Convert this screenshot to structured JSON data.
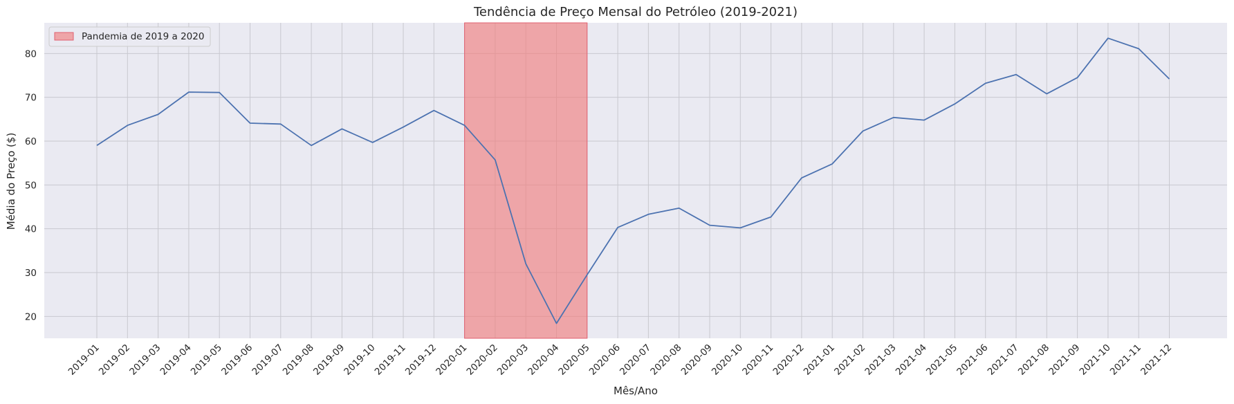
{
  "chart_data": {
    "type": "line",
    "title": "Tendência de Preço Mensal do Petróleo (2019-2021)",
    "xlabel": "Mês/Ano",
    "ylabel": "Média do Preço ($)",
    "ylim": [
      15,
      87
    ],
    "yticks": [
      20,
      30,
      40,
      50,
      60,
      70,
      80
    ],
    "grid": true,
    "legend_position": "top-left",
    "categories": [
      "2019-01",
      "2019-02",
      "2019-03",
      "2019-04",
      "2019-05",
      "2019-06",
      "2019-07",
      "2019-08",
      "2019-09",
      "2019-10",
      "2019-11",
      "2019-12",
      "2020-01",
      "2020-02",
      "2020-03",
      "2020-04",
      "2020-05",
      "2020-06",
      "2020-07",
      "2020-08",
      "2020-09",
      "2020-10",
      "2020-11",
      "2020-12",
      "2021-01",
      "2021-02",
      "2021-03",
      "2021-04",
      "2021-05",
      "2021-06",
      "2021-07",
      "2021-08",
      "2021-09",
      "2021-10",
      "2021-11",
      "2021-12"
    ],
    "series": [
      {
        "values": [
          59.0,
          63.6,
          66.1,
          71.2,
          71.1,
          64.1,
          63.9,
          59.0,
          62.8,
          59.7,
          63.2,
          67.0,
          63.6,
          55.7,
          32.0,
          18.4,
          29.5,
          40.3,
          43.3,
          44.7,
          40.8,
          40.2,
          42.7,
          51.6,
          54.8,
          62.3,
          65.4,
          64.8,
          68.5,
          73.2,
          75.2,
          70.8,
          74.5,
          83.5,
          81.1,
          74.2
        ],
        "color": "#4c72b0"
      }
    ],
    "highlight": {
      "label": "Pandemia de 2019 a 2020",
      "start": "2020-01",
      "end": "2020-05",
      "color": "#f08080"
    }
  }
}
